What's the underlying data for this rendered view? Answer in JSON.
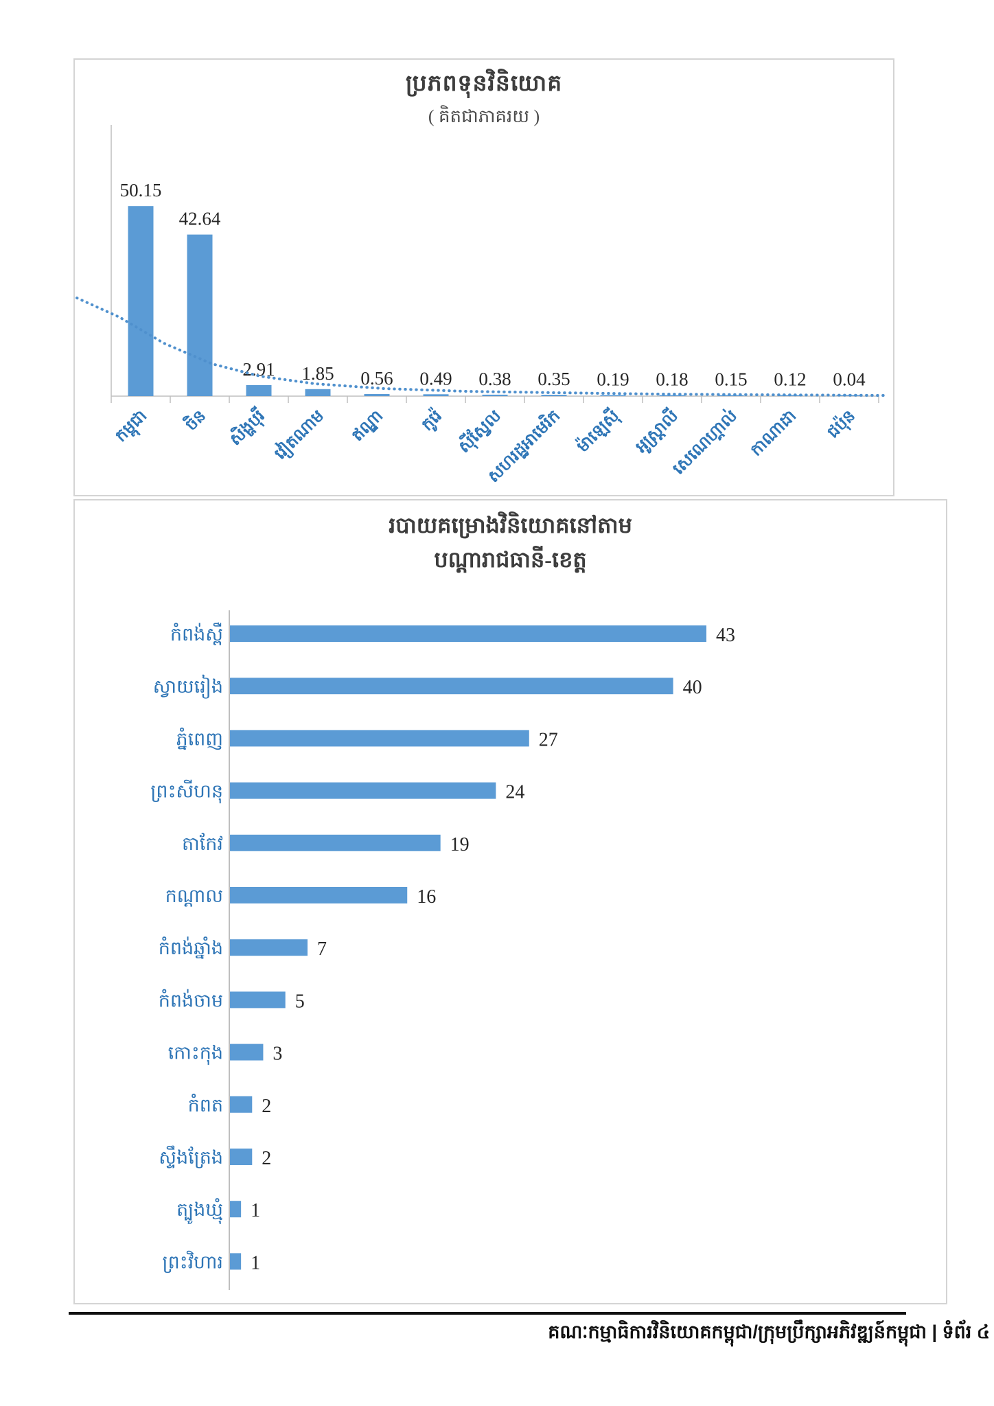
{
  "footer": {
    "text": "គណៈកម្មាធិការវិនិយោគកម្ពុជា/ក្រុមប្រឹក្សាអភិវឌ្ឍន៍កម្ពុជា | ទំព័រ ៤"
  },
  "colors": {
    "bar": "#5B9BD5",
    "category_label": "#2E75B6",
    "value_label": "#262626",
    "axis": "#bfbfbf",
    "trendline": "#4f90cd",
    "panel_border": "#d4d4d4"
  },
  "chart_data": [
    {
      "type": "bar",
      "orientation": "vertical",
      "title": "ប្រភពទុនវិនិយោគ",
      "subtitle": "( គិតជាភាគរយ )",
      "categories": [
        "កម្ពុជា",
        "ចិន",
        "សិង្ហបុរី",
        "វៀតណាម",
        "ឥណ្ឌា",
        "កូរ៉េ",
        "ស៊ីស្វែល",
        "សហរដ្ឋអាមេរិក",
        "ម៉ាឡេស៊ី",
        "អូស្ត្រាលី",
        "សេណេហ្គាល់",
        "កាណាដា",
        "ជប៉ុន"
      ],
      "values": [
        50.15,
        42.64,
        2.91,
        1.85,
        0.56,
        0.49,
        0.38,
        0.35,
        0.19,
        0.18,
        0.15,
        0.12,
        0.04
      ],
      "unit": "percent",
      "data_labels": true,
      "trendline": true,
      "grid": false,
      "legend": false,
      "ylim": [
        0,
        55
      ],
      "x_label_rotation": -45
    },
    {
      "type": "bar",
      "orientation": "horizontal",
      "title_line1": "របាយគម្រោងវិនិយោគនៅតាម",
      "title_line2": "បណ្តារាជធានី-ខេត្ត",
      "categories": [
        "កំពង់ស្ពឺ",
        "ស្វាយរៀង",
        "ភ្នំពេញ",
        "ព្រះសីហនុ",
        "តាកែវ",
        "កណ្តាល",
        "កំពង់ឆ្នាំង",
        "កំពង់ចាម",
        "កោះកុង",
        "កំពត",
        "ស្ទឹងត្រែង",
        "ត្បូងឃ្មុំ",
        "ព្រះវិហារ"
      ],
      "values": [
        43,
        40,
        27,
        24,
        19,
        16,
        7,
        5,
        3,
        2,
        2,
        1,
        1
      ],
      "unit": "projects",
      "data_labels": true,
      "grid": false,
      "legend": false
    }
  ]
}
